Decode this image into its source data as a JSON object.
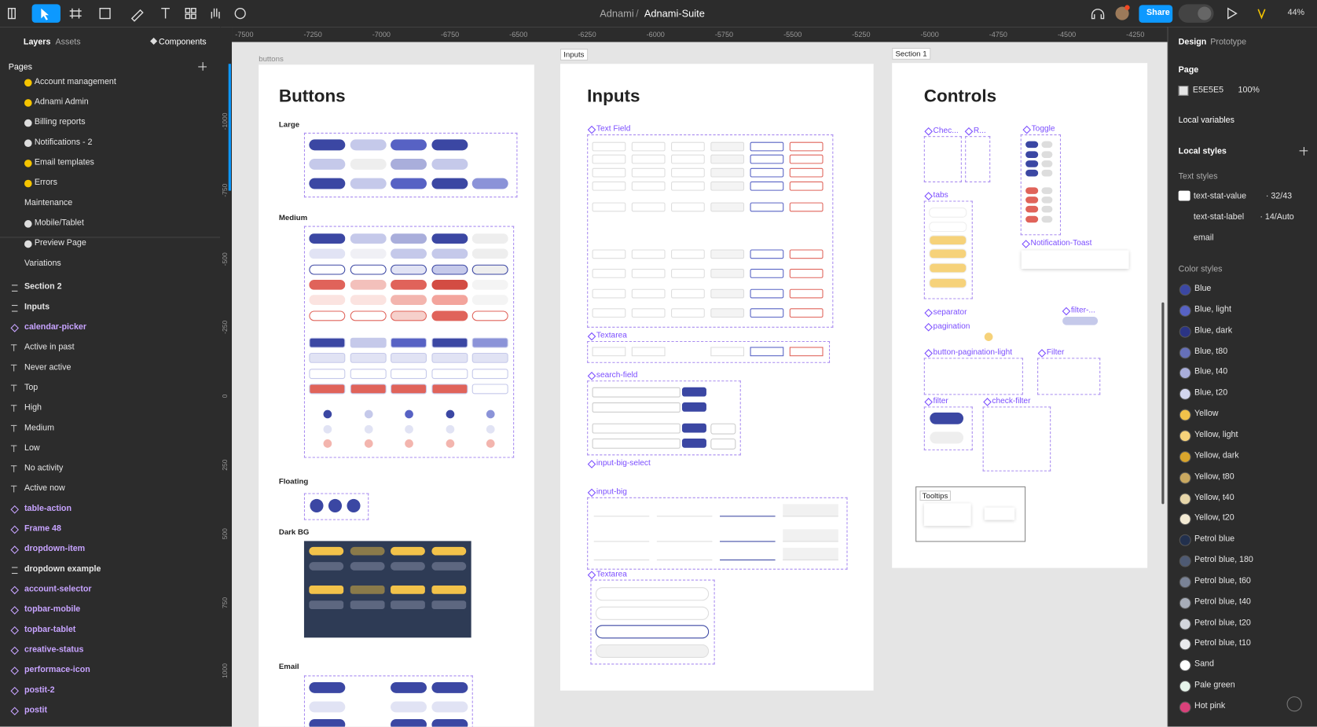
{
  "toolbar": {
    "project": "Adnami",
    "separator": "/",
    "file": "Adnami-Suite",
    "share": "Share",
    "zoom": "44%"
  },
  "left_panel": {
    "tabs": [
      "Layers",
      "Assets"
    ],
    "components": "Components",
    "pages_title": "Pages",
    "pages": [
      {
        "name": "Account management",
        "dot": "#f5c400"
      },
      {
        "name": "Adnami Admin",
        "dot": "#f5c400"
      },
      {
        "name": "Billing reports",
        "dot": "#dddddd"
      },
      {
        "name": "Notifications - 2",
        "dot": "#dddddd"
      },
      {
        "name": "Email templates",
        "dot": "#f5c400"
      },
      {
        "name": "Errors",
        "dot": "#f5c400"
      },
      {
        "name": "Maintenance",
        "dot": null
      },
      {
        "name": "Mobile/Tablet",
        "dot": "#dddddd"
      },
      {
        "name": "Preview Page",
        "dot": "#dddddd"
      },
      {
        "name": "Variations",
        "dot": null
      }
    ],
    "layers": [
      {
        "name": "Section 2",
        "kind": "section"
      },
      {
        "name": "Inputs",
        "kind": "section"
      },
      {
        "name": "calendar-picker",
        "kind": "component"
      },
      {
        "name": "Active in past",
        "kind": "text"
      },
      {
        "name": "Never active",
        "kind": "text"
      },
      {
        "name": "Top",
        "kind": "text"
      },
      {
        "name": "High",
        "kind": "text"
      },
      {
        "name": "Medium",
        "kind": "text"
      },
      {
        "name": "Low",
        "kind": "text"
      },
      {
        "name": "No activity",
        "kind": "text"
      },
      {
        "name": "Active now",
        "kind": "text"
      },
      {
        "name": "table-action",
        "kind": "component"
      },
      {
        "name": "Frame 48",
        "kind": "component"
      },
      {
        "name": "dropdown-item",
        "kind": "component"
      },
      {
        "name": "dropdown example",
        "kind": "frame"
      },
      {
        "name": "account-selector",
        "kind": "component"
      },
      {
        "name": "topbar-mobile",
        "kind": "component"
      },
      {
        "name": "topbar-tablet",
        "kind": "component"
      },
      {
        "name": "creative-status",
        "kind": "component"
      },
      {
        "name": "performace-icon",
        "kind": "component"
      },
      {
        "name": "postit-2",
        "kind": "component"
      },
      {
        "name": "postit",
        "kind": "component"
      }
    ]
  },
  "rulers": {
    "top": [
      "-7500",
      "-7250",
      "-7000",
      "-6750",
      "-6500",
      "-6250",
      "-6000",
      "-5750",
      "-5500",
      "-5250",
      "-5000",
      "-4750",
      "-4500",
      "-4250"
    ],
    "left": [
      "-1000",
      "-750",
      "-500",
      "-250",
      "0",
      "250",
      "500",
      "750",
      "1000"
    ]
  },
  "canvas": {
    "frame_labels": [
      "buttons",
      "Inputs",
      "Section 1"
    ],
    "buttons_frame": {
      "title": "Buttons",
      "sections": [
        "Large",
        "Medium",
        "Floating",
        "Dark BG",
        "Email"
      ]
    },
    "inputs_frame": {
      "title": "Inputs",
      "components": [
        "Text Field",
        "Textarea",
        "search-field",
        "input-big-select",
        "input-big",
        "Textarea"
      ]
    },
    "controls_frame": {
      "title": "Controls",
      "components": [
        "Chec...",
        "R...",
        "Toggle",
        "tabs",
        "Notification-Toast",
        "separator",
        "filter-...",
        "pagination",
        "button-pagination-light",
        "Filter",
        "filter",
        "check-filter"
      ],
      "tooltips": "Tooltips"
    }
  },
  "right_panel": {
    "tabs": [
      "Design",
      "Prototype"
    ],
    "page": "Page",
    "page_color": "E5E5E5",
    "page_opacity": "100%",
    "local_variables": "Local variables",
    "local_styles": "Local styles",
    "text_styles_title": "Text styles",
    "text_styles": [
      {
        "name": "text-stat-value",
        "detail": "· 32/43"
      },
      {
        "name": "text-stat-label",
        "detail": "· 14/Auto"
      },
      {
        "name": "email",
        "detail": null
      }
    ],
    "color_styles_title": "Color styles",
    "color_styles": [
      {
        "name": "Blue",
        "color": "#3b47a3"
      },
      {
        "name": "Blue, light",
        "color": "#5762c4"
      },
      {
        "name": "Blue, dark",
        "color": "#2b3484"
      },
      {
        "name": "Blue, t80",
        "color": "#6670b8"
      },
      {
        "name": "Blue, t40",
        "color": "#a9aedb"
      },
      {
        "name": "Blue, t20",
        "color": "#d3d6ee"
      },
      {
        "name": "Yellow",
        "color": "#f2c24a"
      },
      {
        "name": "Yellow, light",
        "color": "#f6d27a"
      },
      {
        "name": "Yellow, dark",
        "color": "#d9a52c"
      },
      {
        "name": "Yellow, t80",
        "color": "#c9a860"
      },
      {
        "name": "Yellow, t40",
        "color": "#e7d6a9"
      },
      {
        "name": "Yellow, t20",
        "color": "#f3ead3"
      },
      {
        "name": "Petrol blue",
        "color": "#22304d"
      },
      {
        "name": "Petrol blue, 180",
        "color": "#4e5a73"
      },
      {
        "name": "Petrol blue, t60",
        "color": "#7a8396"
      },
      {
        "name": "Petrol blue, t40",
        "color": "#a7adb8"
      },
      {
        "name": "Petrol blue, t20",
        "color": "#d3d6dc"
      },
      {
        "name": "Petrol blue, t10",
        "color": "#e9eaed"
      },
      {
        "name": "Sand",
        "color": "#ffffff"
      },
      {
        "name": "Pale green",
        "color": "#e6f4ea"
      },
      {
        "name": "Hot pink",
        "color": "#d9417a"
      }
    ]
  }
}
